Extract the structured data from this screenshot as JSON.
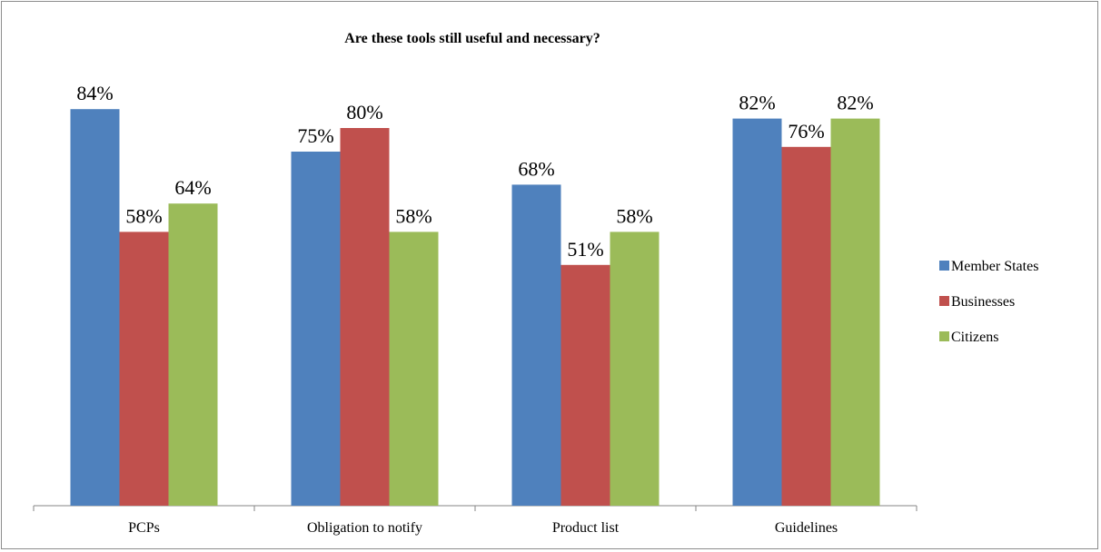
{
  "chart_data": {
    "type": "bar",
    "title": "Are these tools still useful and necessary?",
    "categories": [
      "PCPs",
      "Obligation to notify",
      "Product list",
      "Guidelines"
    ],
    "series": [
      {
        "name": "Member States",
        "values": [
          84,
          75,
          68,
          82
        ],
        "color": "#4f81bd"
      },
      {
        "name": "Businesses",
        "values": [
          58,
          80,
          51,
          76
        ],
        "color": "#c0504d"
      },
      {
        "name": "Citizens",
        "values": [
          64,
          58,
          58,
          82
        ],
        "color": "#9bbb59"
      }
    ],
    "value_suffix": "%",
    "ylim": [
      0,
      100
    ],
    "xlabel": "",
    "ylabel": "",
    "grid": false,
    "legend_position": "right"
  }
}
